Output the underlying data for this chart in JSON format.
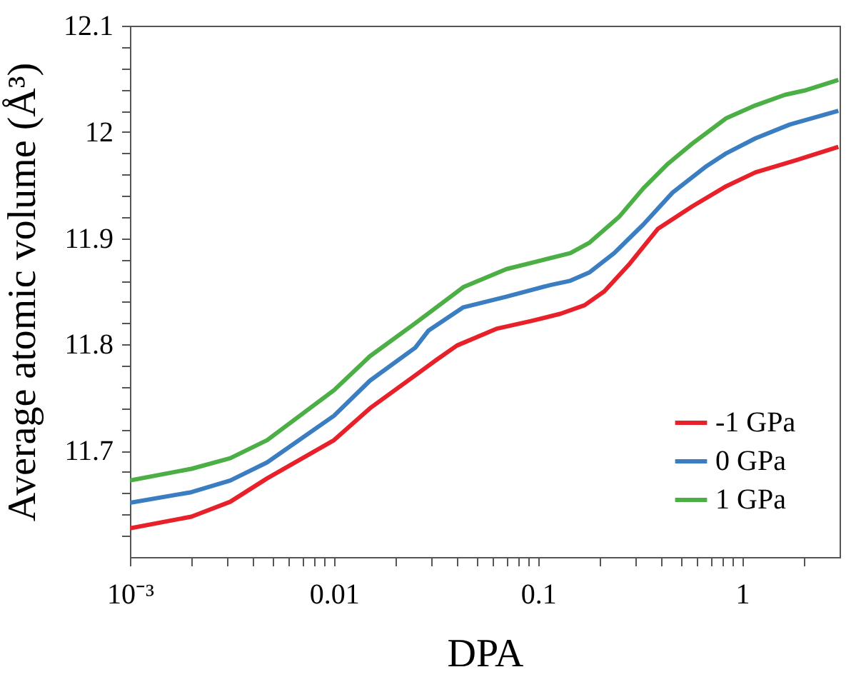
{
  "chart_data": {
    "type": "line",
    "xlabel": "DPA",
    "ylabel": "Average atomic volume (Å³)",
    "log": "x",
    "grid": false,
    "legend": "bottom right",
    "line_style": "solid",
    "marker": "none",
    "xlim": [
      0.001,
      3
    ],
    "ylim": [
      11.6,
      12.1
    ],
    "xticks": [
      {
        "value": 0.001,
        "label": "10⁻³"
      },
      {
        "value": 0.002,
        "label": null
      },
      {
        "value": 0.003,
        "label": null
      },
      {
        "value": 0.004,
        "label": null
      },
      {
        "value": 0.005,
        "label": null
      },
      {
        "value": 0.006,
        "label": null
      },
      {
        "value": 0.007,
        "label": null
      },
      {
        "value": 0.008,
        "label": null
      },
      {
        "value": 0.009,
        "label": null
      },
      0.01,
      {
        "value": 0.02,
        "label": null
      },
      {
        "value": 0.03,
        "label": null
      },
      {
        "value": 0.04,
        "label": null
      },
      {
        "value": 0.05,
        "label": null
      },
      {
        "value": 0.06,
        "label": null
      },
      {
        "value": 0.07,
        "label": null
      },
      {
        "value": 0.08,
        "label": null
      },
      {
        "value": 0.09,
        "label": null
      },
      0.1,
      {
        "value": 0.2,
        "label": null
      },
      {
        "value": 0.3,
        "label": null
      },
      {
        "value": 0.4,
        "label": null
      },
      {
        "value": 0.5,
        "label": null
      },
      {
        "value": 0.6,
        "label": null
      },
      {
        "value": 0.7,
        "label": null
      },
      {
        "value": 0.8,
        "label": null
      },
      {
        "value": 0.9,
        "label": null
      },
      1,
      {
        "value": 2,
        "label": null
      }
    ],
    "yticks": [
      {
        "value": 11.62,
        "label": null
      },
      {
        "value": 11.64,
        "label": null
      },
      {
        "value": 11.66,
        "label": null
      },
      {
        "value": 11.68,
        "label": null
      },
      11.7,
      {
        "value": 11.72,
        "label": null
      },
      {
        "value": 11.74,
        "label": null
      },
      {
        "value": 11.76,
        "label": null
      },
      {
        "value": 11.78,
        "label": null
      },
      11.8,
      {
        "value": 11.82,
        "label": null
      },
      {
        "value": 11.84,
        "label": null
      },
      {
        "value": 11.86,
        "label": null
      },
      {
        "value": 11.88,
        "label": null
      },
      11.9,
      {
        "value": 11.92,
        "label": null
      },
      {
        "value": 11.94,
        "label": null
      },
      {
        "value": 11.96,
        "label": null
      },
      {
        "value": 11.98,
        "label": null
      },
      12,
      {
        "value": 12.02,
        "label": null
      },
      {
        "value": 12.04,
        "label": null
      },
      {
        "value": 12.06,
        "label": null
      },
      {
        "value": 12.08,
        "label": null
      },
      12.1
    ],
    "series": [
      {
        "name": "-1 GPa",
        "color": "#e8202a",
        "x": [
          0.001,
          0.002,
          0.0031,
          0.0047,
          0.01,
          0.015,
          0.025,
          0.032,
          0.04,
          0.063,
          0.092,
          0.129,
          0.169,
          0.211,
          0.278,
          0.387,
          0.569,
          0.836,
          1.16,
          1.81,
          2.96
        ],
        "values": [
          11.627,
          11.638,
          11.652,
          11.674,
          11.71,
          11.74,
          11.771,
          11.786,
          11.799,
          11.815,
          11.822,
          11.829,
          11.837,
          11.85,
          11.875,
          11.909,
          11.93,
          11.949,
          11.962,
          11.973,
          11.986
        ]
      },
      {
        "name": "0 GPa",
        "color": "#3a7dc0",
        "x": [
          0.001,
          0.002,
          0.0031,
          0.0047,
          0.01,
          0.015,
          0.025,
          0.029,
          0.043,
          0.07,
          0.115,
          0.144,
          0.179,
          0.236,
          0.328,
          0.456,
          0.67,
          0.836,
          1.16,
          1.71,
          2.96
        ],
        "values": [
          11.651,
          11.661,
          11.672,
          11.689,
          11.733,
          11.766,
          11.797,
          11.813,
          11.835,
          11.845,
          11.856,
          11.86,
          11.868,
          11.886,
          11.913,
          11.943,
          11.968,
          11.98,
          11.994,
          12.007,
          12.02
        ]
      },
      {
        "name": "1 GPa",
        "color": "#4caf45",
        "x": [
          0.001,
          0.002,
          0.0031,
          0.0047,
          0.01,
          0.015,
          0.025,
          0.043,
          0.07,
          0.098,
          0.144,
          0.179,
          0.249,
          0.328,
          0.432,
          0.569,
          0.836,
          1.16,
          1.62,
          2.02,
          2.96
        ],
        "values": [
          11.672,
          11.683,
          11.693,
          11.71,
          11.757,
          11.789,
          11.82,
          11.854,
          11.871,
          11.878,
          11.886,
          11.896,
          11.92,
          11.947,
          11.97,
          11.989,
          12.013,
          12.025,
          12.035,
          12.039,
          12.049
        ]
      }
    ]
  }
}
